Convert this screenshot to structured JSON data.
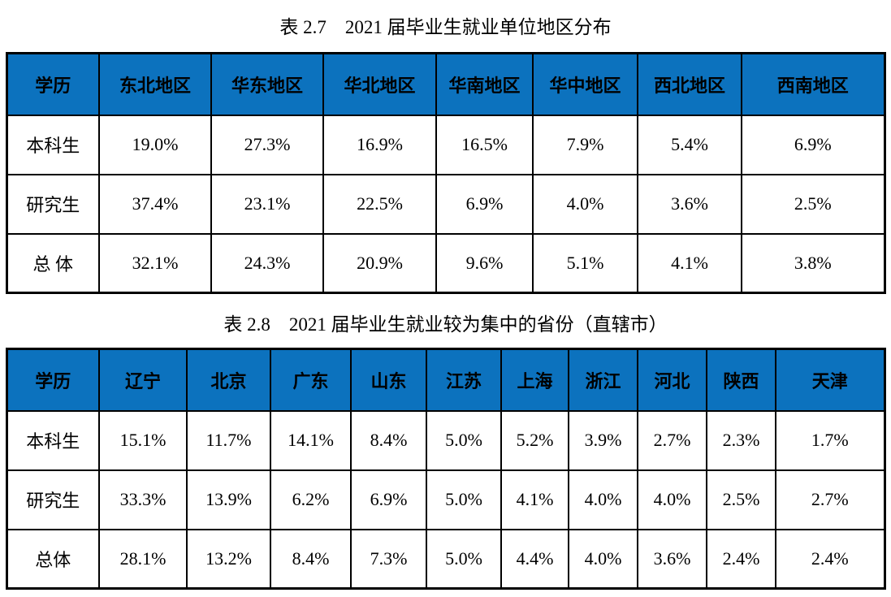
{
  "colors": {
    "header_bg": "#0c72be",
    "border": "#000000",
    "text": "#000000",
    "page_bg": "#ffffff"
  },
  "tables": [
    {
      "title": "表 2.7　2021 届毕业生就业单位地区分布",
      "headers": [
        "学历",
        "东北地区",
        "华东地区",
        "华北地区",
        "华南地区",
        "华中地区",
        "西北地区",
        "西南地区"
      ],
      "rows": [
        {
          "label": "本科生",
          "values": [
            "19.0%",
            "27.3%",
            "16.9%",
            "16.5%",
            "7.9%",
            "5.4%",
            "6.9%"
          ]
        },
        {
          "label": "研究生",
          "values": [
            "37.4%",
            "23.1%",
            "22.5%",
            "6.9%",
            "4.0%",
            "3.6%",
            "2.5%"
          ]
        },
        {
          "label": "总 体",
          "values": [
            "32.1%",
            "24.3%",
            "20.9%",
            "9.6%",
            "5.1%",
            "4.1%",
            "3.8%"
          ]
        }
      ]
    },
    {
      "title": "表 2.8　2021 届毕业生就业较为集中的省份（直辖市）",
      "headers": [
        "学历",
        "辽宁",
        "北京",
        "广东",
        "山东",
        "江苏",
        "上海",
        "浙江",
        "河北",
        "陕西",
        "天津"
      ],
      "rows": [
        {
          "label": "本科生",
          "values": [
            "15.1%",
            "11.7%",
            "14.1%",
            "8.4%",
            "5.0%",
            "5.2%",
            "3.9%",
            "2.7%",
            "2.3%",
            "1.7%"
          ]
        },
        {
          "label": "研究生",
          "values": [
            "33.3%",
            "13.9%",
            "6.2%",
            "6.9%",
            "5.0%",
            "4.1%",
            "4.0%",
            "4.0%",
            "2.5%",
            "2.7%"
          ]
        },
        {
          "label": "总体",
          "values": [
            "28.1%",
            "13.2%",
            "8.4%",
            "7.3%",
            "5.0%",
            "4.4%",
            "4.0%",
            "3.6%",
            "2.4%",
            "2.4%"
          ]
        }
      ]
    }
  ]
}
